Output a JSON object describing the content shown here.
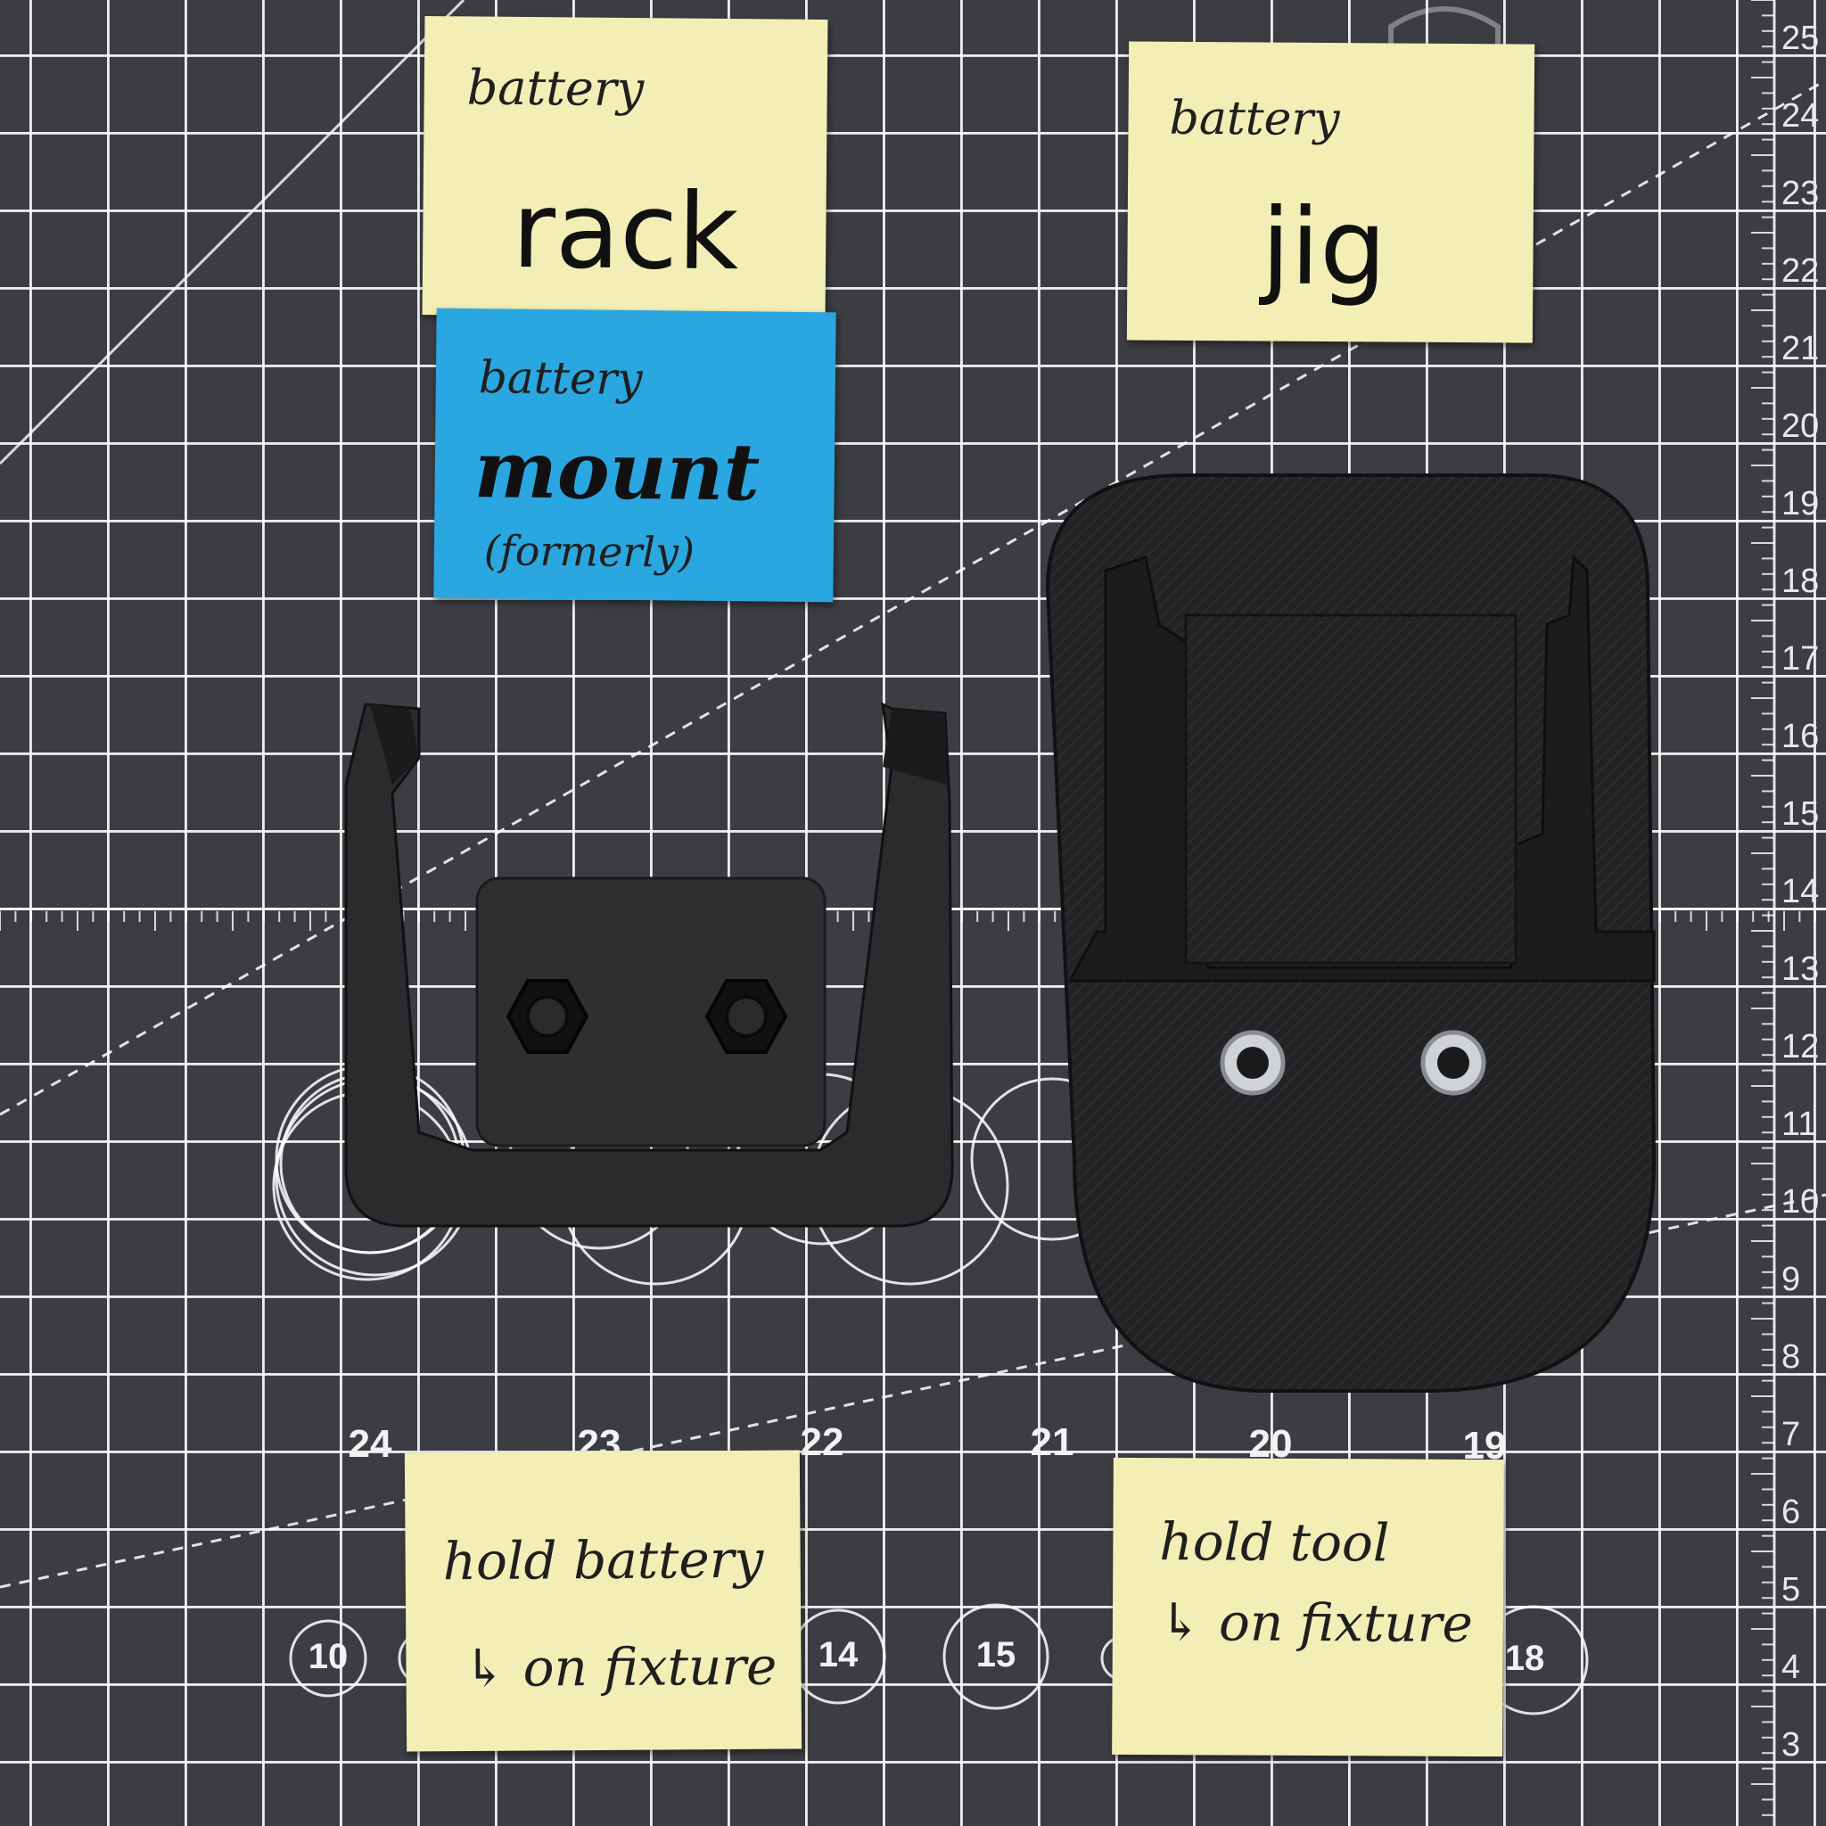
{
  "notes": {
    "rack": {
      "line1": "battery",
      "line2": "rack"
    },
    "mount": {
      "line1": "battery",
      "line2": "mount",
      "line3": "(formerly)"
    },
    "jig": {
      "line1": "battery",
      "line2": "jig"
    },
    "hold_battery": {
      "line1": "hold battery",
      "line2": "↳ on fixture"
    },
    "hold_tool": {
      "line1": "hold tool",
      "line2": "↳ on fixture"
    }
  },
  "mat": {
    "circle_numbers_row1": [
      "24",
      "23",
      "22",
      "21",
      "20",
      "19"
    ],
    "circle_numbers_row2": [
      "10",
      "14",
      "15",
      "18"
    ],
    "ruler_numbers": [
      "25",
      "24",
      "23",
      "22",
      "21",
      "20",
      "19",
      "18",
      "17",
      "16",
      "15",
      "14",
      "13",
      "12",
      "11",
      "10",
      "9",
      "8",
      "7",
      "6",
      "5",
      "4",
      "3"
    ]
  },
  "colors": {
    "mat": "#3b3d42",
    "grid": "#ffffff",
    "sticky_yellow": "#f2eeb6",
    "sticky_blue": "#2aa7e0",
    "plastic": "#2a2a2c"
  },
  "objects": {
    "left_part": "battery-rack-3d-print",
    "right_part": "battery-jig-3d-print"
  }
}
